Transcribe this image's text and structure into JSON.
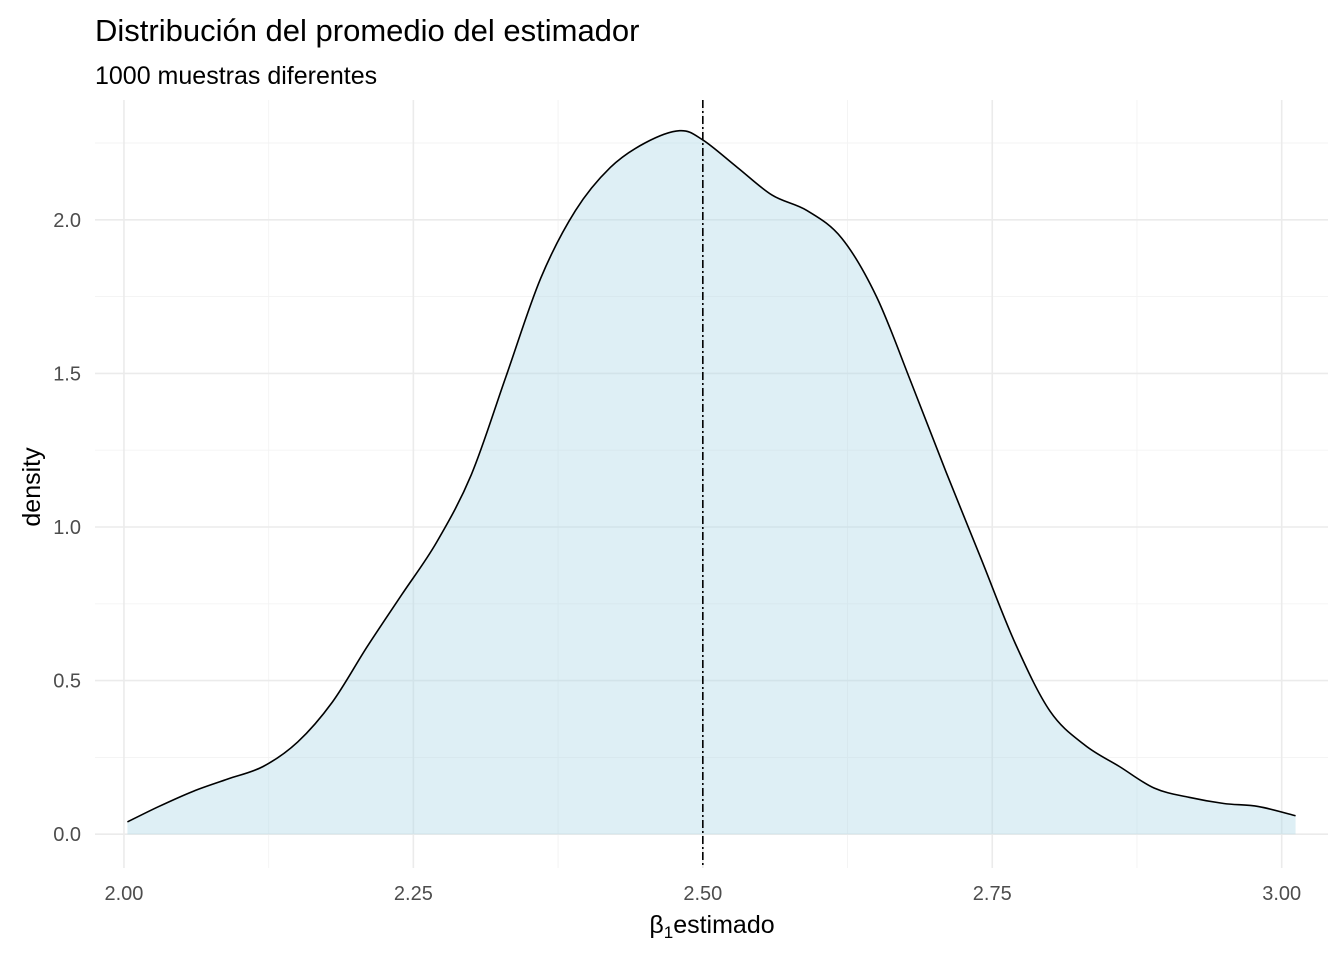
{
  "chart_data": {
    "type": "area",
    "title": "Distribución del promedio del estimador",
    "subtitle": "1000 muestras diferentes",
    "xlabel_symbol": "β",
    "xlabel_subscript": "1",
    "xlabel_text": "estimado",
    "ylabel": "density",
    "xlim": [
      1.975,
      3.04
    ],
    "ylim": [
      -0.11,
      2.39
    ],
    "x_ticks": [
      2.0,
      2.25,
      2.5,
      2.75,
      3.0
    ],
    "x_tick_labels": [
      "2.00",
      "2.25",
      "2.50",
      "2.75",
      "3.00"
    ],
    "y_ticks": [
      0.0,
      0.5,
      1.0,
      1.5,
      2.0
    ],
    "y_tick_labels": [
      "0.0",
      "0.5",
      "1.0",
      "1.5",
      "2.0"
    ],
    "vline_x": 2.5,
    "fill_color": "#add8e6",
    "fill_opacity": 0.4,
    "line_color": "#000000",
    "grid": true,
    "series": [
      {
        "x": [
          2.003,
          2.03,
          2.06,
          2.09,
          2.12,
          2.15,
          2.18,
          2.21,
          2.24,
          2.27,
          2.3,
          2.33,
          2.36,
          2.39,
          2.42,
          2.45,
          2.48,
          2.5,
          2.53,
          2.56,
          2.59,
          2.62,
          2.65,
          2.68,
          2.71,
          2.74,
          2.77,
          2.8,
          2.83,
          2.86,
          2.89,
          2.92,
          2.95,
          2.98,
          3.012
        ],
        "y": [
          0.04,
          0.09,
          0.14,
          0.18,
          0.22,
          0.3,
          0.43,
          0.61,
          0.78,
          0.95,
          1.17,
          1.49,
          1.81,
          2.03,
          2.17,
          2.25,
          2.29,
          2.26,
          2.17,
          2.08,
          2.03,
          1.94,
          1.75,
          1.47,
          1.18,
          0.9,
          0.62,
          0.4,
          0.29,
          0.22,
          0.15,
          0.12,
          0.1,
          0.09,
          0.06
        ]
      }
    ]
  }
}
